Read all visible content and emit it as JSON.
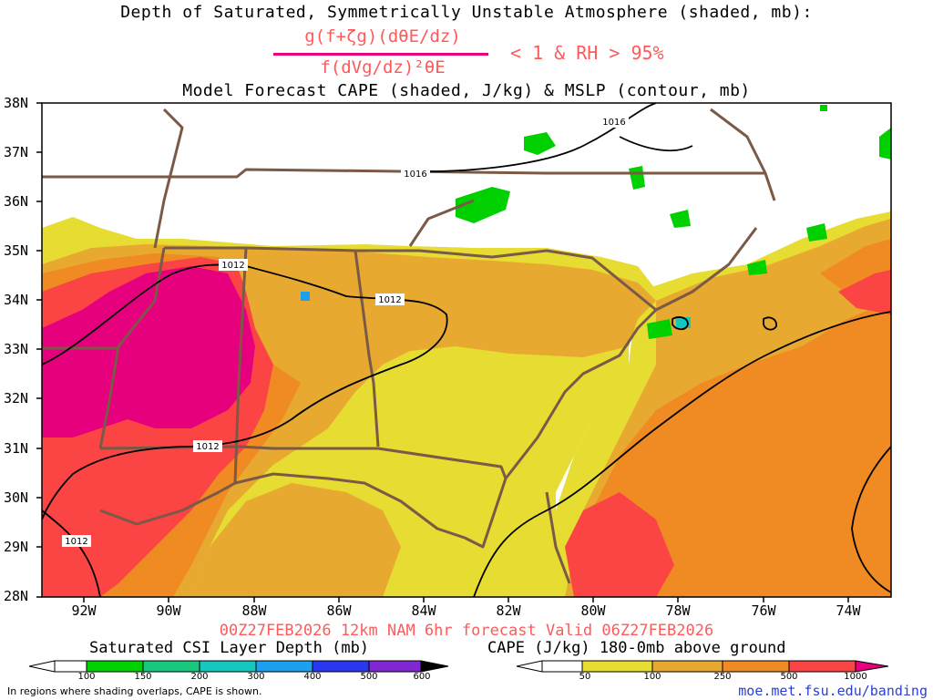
{
  "header": {
    "line1": "Depth of Saturated, Symmetrically Unstable Atmosphere (shaded, mb):",
    "numerator": "g(f+ζg)(dθE/dz)",
    "denominator": "f(dVg/dz)²θE",
    "condition": "< 1 & RH > 95%",
    "line3": "Model Forecast CAPE (shaded, J/kg) & MSLP (contour, mb)"
  },
  "map": {
    "lat_labels": [
      "38N",
      "37N",
      "36N",
      "35N",
      "34N",
      "33N",
      "32N",
      "31N",
      "30N",
      "29N",
      "28N"
    ],
    "lon_labels": [
      "92W",
      "90W",
      "88W",
      "86W",
      "84W",
      "82W",
      "80W",
      "78W",
      "76W",
      "74W"
    ],
    "isobar_labels": [
      "1016",
      "1016",
      "1012",
      "1012",
      "1012",
      "1012"
    ],
    "colors": {
      "state_borders": "#7a5a46",
      "csi_green": "#00d000",
      "cape_yellow": "#e6dc32",
      "cape_lightorange": "#e8a930",
      "cape_orange": "#f08a22",
      "cape_red": "#fb4444",
      "cape_magenta": "#e6007e"
    }
  },
  "valid_line": "00Z27FEB2026 12km NAM 6hr forecast Valid 06Z27FEB2026",
  "colorbar_csi": {
    "title": "Saturated CSI Layer Depth (mb)",
    "ticks": [
      "100",
      "150",
      "200",
      "300",
      "400",
      "500",
      "600"
    ],
    "colors": [
      "#00d000",
      "#19c87e",
      "#14c8c0",
      "#1ea0f0",
      "#2838f0",
      "#8228d2",
      "#000000"
    ]
  },
  "colorbar_cape": {
    "title": "CAPE (J/kg) 180-0mb above ground",
    "ticks": [
      "50",
      "100",
      "250",
      "500",
      "1000"
    ],
    "colors": [
      "#e6dc32",
      "#e8a930",
      "#f08a22",
      "#fb4444",
      "#e6007e"
    ]
  },
  "footnote": "In regions where shading overlaps, CAPE is shown.",
  "url": "moe.met.fsu.edu/banding"
}
